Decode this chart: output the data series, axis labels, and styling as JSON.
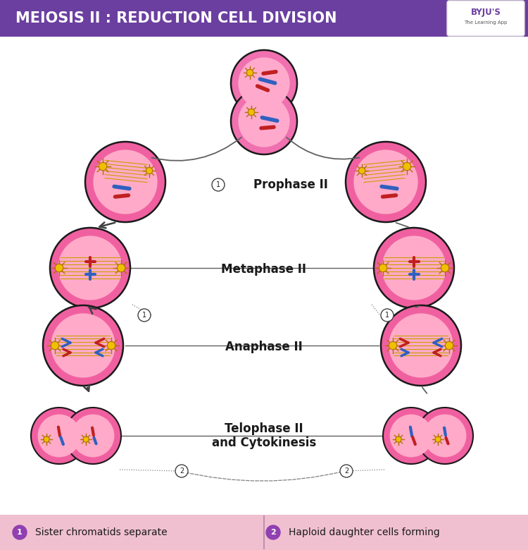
{
  "title": "MEIOSIS II : REDUCTION CELL DIVISION",
  "title_bg": "#6b3fa0",
  "title_color": "#ffffff",
  "bg_color": "#ffffff",
  "footer_bg": "#f0c0d0",
  "footer_text1": "Sister chromatids separate",
  "footer_text2": "Haploid daughter cells forming",
  "label_prophase": "Prophase II",
  "label_metaphase": "Metaphase II",
  "label_anaphase": "Anaphase II",
  "label_telophase": "Telophase II\nand Cytokinesis",
  "cell_border": "#1a1a1a",
  "cell_fill_pink": "#f060a0",
  "cell_fill_light": "#ffaac8",
  "spindle_color": "#c8a000",
  "chr_blue": "#3060c0",
  "chr_red": "#c02020",
  "sun_color": "#f0c000",
  "arrow_color": "#404040",
  "line_color": "#606060",
  "dot_line_color": "#808080",
  "number_circle_color": "#ffffff",
  "number_circle_edge": "#404040",
  "footer_circle_color": "#9040b0"
}
